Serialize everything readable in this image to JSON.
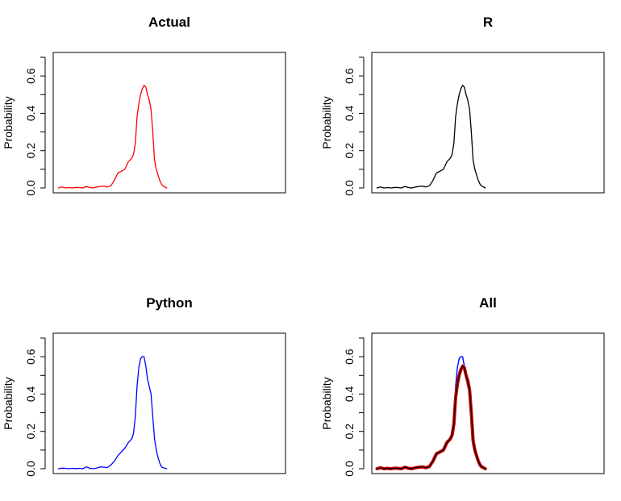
{
  "chart_data": [
    {
      "type": "line",
      "title": "Actual",
      "xlabel": "",
      "ylabel": "Probability",
      "ylim": [
        0,
        0.7
      ],
      "yticks": [
        "0.0",
        "0.2",
        "0.4",
        "0.6"
      ],
      "x_axis_shown": false,
      "grid": false,
      "series": [
        {
          "color": "#ff0000",
          "x": [
            0,
            2,
            4,
            6,
            8,
            10,
            12,
            14,
            16,
            18,
            20,
            22,
            24,
            26,
            28,
            30,
            32,
            34,
            36,
            38,
            40,
            41,
            42,
            43,
            44,
            45,
            46,
            47,
            48,
            49,
            50,
            51,
            52,
            53,
            54,
            55,
            56,
            57,
            58,
            59,
            60,
            62
          ],
          "y": [
            0.0,
            0.005,
            0.0,
            0.002,
            0.0,
            0.003,
            0.002,
            0.0,
            0.008,
            0.002,
            0.0,
            0.005,
            0.008,
            0.01,
            0.005,
            0.012,
            0.04,
            0.08,
            0.09,
            0.1,
            0.14,
            0.15,
            0.16,
            0.18,
            0.24,
            0.38,
            0.45,
            0.5,
            0.53,
            0.55,
            0.54,
            0.5,
            0.47,
            0.42,
            0.3,
            0.15,
            0.1,
            0.07,
            0.04,
            0.02,
            0.01,
            0.0
          ]
        }
      ]
    },
    {
      "type": "line",
      "title": "R",
      "xlabel": "",
      "ylabel": "Probability",
      "ylim": [
        0,
        0.7
      ],
      "yticks": [
        "0.0",
        "0.2",
        "0.4",
        "0.6"
      ],
      "x_axis_shown": false,
      "grid": false,
      "series": [
        {
          "color": "#000000",
          "x": [
            0,
            2,
            4,
            6,
            8,
            10,
            12,
            14,
            16,
            18,
            20,
            22,
            24,
            26,
            28,
            30,
            32,
            34,
            36,
            38,
            40,
            41,
            42,
            43,
            44,
            45,
            46,
            47,
            48,
            49,
            50,
            51,
            52,
            53,
            54,
            55,
            56,
            57,
            58,
            59,
            60,
            62
          ],
          "y": [
            0.0,
            0.005,
            0.0,
            0.002,
            0.0,
            0.003,
            0.002,
            0.0,
            0.008,
            0.002,
            0.0,
            0.005,
            0.008,
            0.01,
            0.005,
            0.012,
            0.04,
            0.08,
            0.09,
            0.1,
            0.14,
            0.15,
            0.16,
            0.18,
            0.24,
            0.38,
            0.45,
            0.5,
            0.53,
            0.55,
            0.54,
            0.5,
            0.47,
            0.42,
            0.3,
            0.15,
            0.1,
            0.07,
            0.04,
            0.02,
            0.01,
            0.0
          ]
        }
      ]
    },
    {
      "type": "line",
      "title": "Python",
      "xlabel": "",
      "ylabel": "Probability",
      "ylim": [
        0,
        0.7
      ],
      "yticks": [
        "0.0",
        "0.2",
        "0.4",
        "0.6"
      ],
      "x_axis_shown": false,
      "grid": false,
      "series": [
        {
          "color": "#0000ff",
          "x": [
            0,
            2,
            4,
            6,
            8,
            10,
            12,
            14,
            16,
            18,
            20,
            22,
            24,
            26,
            28,
            30,
            32,
            34,
            36,
            38,
            40,
            41,
            42,
            43,
            44,
            45,
            46,
            47,
            48,
            49,
            50,
            51,
            52,
            53,
            54,
            55,
            56,
            57,
            58,
            59,
            60,
            62
          ],
          "y": [
            0.0,
            0.003,
            0.002,
            0.0,
            0.002,
            0.001,
            0.002,
            0.0,
            0.01,
            0.002,
            0.0,
            0.004,
            0.01,
            0.008,
            0.006,
            0.02,
            0.04,
            0.07,
            0.09,
            0.11,
            0.14,
            0.15,
            0.16,
            0.19,
            0.28,
            0.44,
            0.54,
            0.59,
            0.6,
            0.6,
            0.55,
            0.48,
            0.44,
            0.4,
            0.28,
            0.16,
            0.1,
            0.06,
            0.03,
            0.01,
            0.005,
            0.0
          ]
        }
      ]
    },
    {
      "type": "line",
      "title": "All",
      "xlabel": "",
      "ylabel": "Probability",
      "ylim": [
        0,
        0.7
      ],
      "yticks": [
        "0.0",
        "0.2",
        "0.4",
        "0.6"
      ],
      "x_axis_shown": false,
      "grid": false,
      "series": [
        {
          "color": "#0000ff",
          "x": [
            0,
            2,
            4,
            6,
            8,
            10,
            12,
            14,
            16,
            18,
            20,
            22,
            24,
            26,
            28,
            30,
            32,
            34,
            36,
            38,
            40,
            41,
            42,
            43,
            44,
            45,
            46,
            47,
            48,
            49,
            50,
            51,
            52,
            53,
            54,
            55,
            56,
            57,
            58,
            59,
            60,
            62
          ],
          "y": [
            0.0,
            0.003,
            0.002,
            0.0,
            0.002,
            0.001,
            0.002,
            0.0,
            0.01,
            0.002,
            0.0,
            0.004,
            0.01,
            0.008,
            0.006,
            0.02,
            0.04,
            0.07,
            0.09,
            0.11,
            0.14,
            0.15,
            0.16,
            0.19,
            0.28,
            0.44,
            0.54,
            0.59,
            0.6,
            0.6,
            0.55,
            0.48,
            0.44,
            0.4,
            0.28,
            0.16,
            0.1,
            0.06,
            0.03,
            0.01,
            0.005,
            0.0
          ]
        },
        {
          "color": "#cc0000",
          "x": [
            0,
            2,
            4,
            6,
            8,
            10,
            12,
            14,
            16,
            18,
            20,
            22,
            24,
            26,
            28,
            30,
            32,
            34,
            36,
            38,
            40,
            41,
            42,
            43,
            44,
            45,
            46,
            47,
            48,
            49,
            50,
            51,
            52,
            53,
            54,
            55,
            56,
            57,
            58,
            59,
            60,
            62
          ],
          "y": [
            0.0,
            0.005,
            0.0,
            0.002,
            0.0,
            0.003,
            0.002,
            0.0,
            0.008,
            0.002,
            0.0,
            0.005,
            0.008,
            0.01,
            0.005,
            0.012,
            0.04,
            0.08,
            0.09,
            0.1,
            0.14,
            0.15,
            0.16,
            0.18,
            0.24,
            0.38,
            0.45,
            0.5,
            0.53,
            0.55,
            0.54,
            0.5,
            0.47,
            0.42,
            0.3,
            0.15,
            0.1,
            0.07,
            0.04,
            0.02,
            0.01,
            0.0
          ]
        },
        {
          "color": "#000000",
          "x": [
            0,
            2,
            4,
            6,
            8,
            10,
            12,
            14,
            16,
            18,
            20,
            22,
            24,
            26,
            28,
            30,
            32,
            34,
            36,
            38,
            40,
            41,
            42,
            43,
            44,
            45,
            46,
            47,
            48,
            49,
            50,
            51,
            52,
            53,
            54,
            55,
            56,
            57,
            58,
            59,
            60,
            62
          ],
          "y": [
            0.0,
            0.005,
            0.0,
            0.002,
            0.0,
            0.003,
            0.002,
            0.0,
            0.008,
            0.002,
            0.0,
            0.005,
            0.008,
            0.01,
            0.005,
            0.012,
            0.04,
            0.08,
            0.09,
            0.1,
            0.14,
            0.15,
            0.16,
            0.18,
            0.24,
            0.38,
            0.45,
            0.5,
            0.53,
            0.55,
            0.54,
            0.5,
            0.47,
            0.42,
            0.3,
            0.15,
            0.1,
            0.07,
            0.04,
            0.02,
            0.01,
            0.0
          ]
        }
      ]
    }
  ]
}
